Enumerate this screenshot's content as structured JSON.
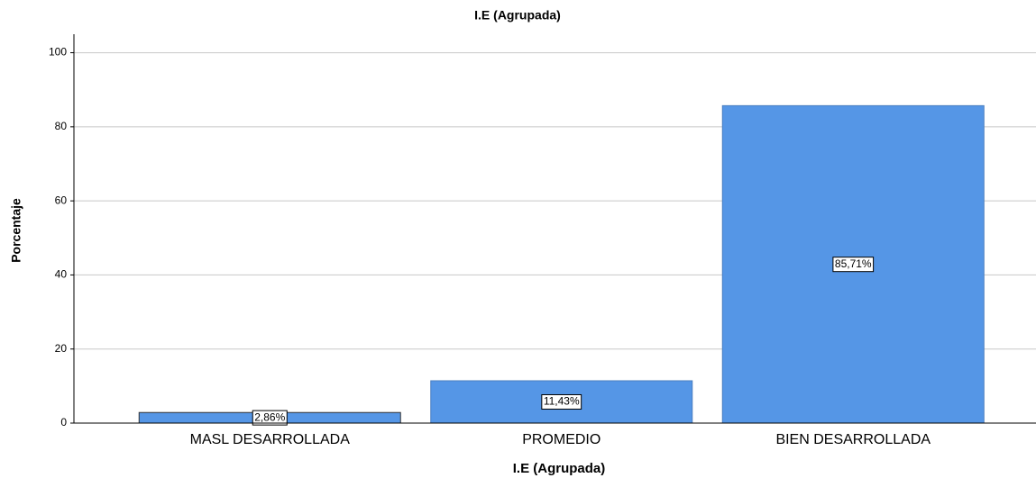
{
  "chart_data": {
    "type": "bar",
    "title": "I.E (Agrupada)",
    "x_label": "I.E (Agrupada)",
    "y_label": "Porcentaje",
    "categories": [
      "MASL DESARROLLADA",
      "PROMEDIO",
      "BIEN DESARROLLADA"
    ],
    "values": [
      2.86,
      11.43,
      85.71
    ],
    "value_labels": [
      "2,86%",
      "11,43%",
      "85,71%"
    ],
    "color": "#5596e6",
    "ylim": [
      0,
      105
    ],
    "yticks": [
      0,
      20,
      40,
      60,
      80,
      100
    ],
    "grid": true
  }
}
